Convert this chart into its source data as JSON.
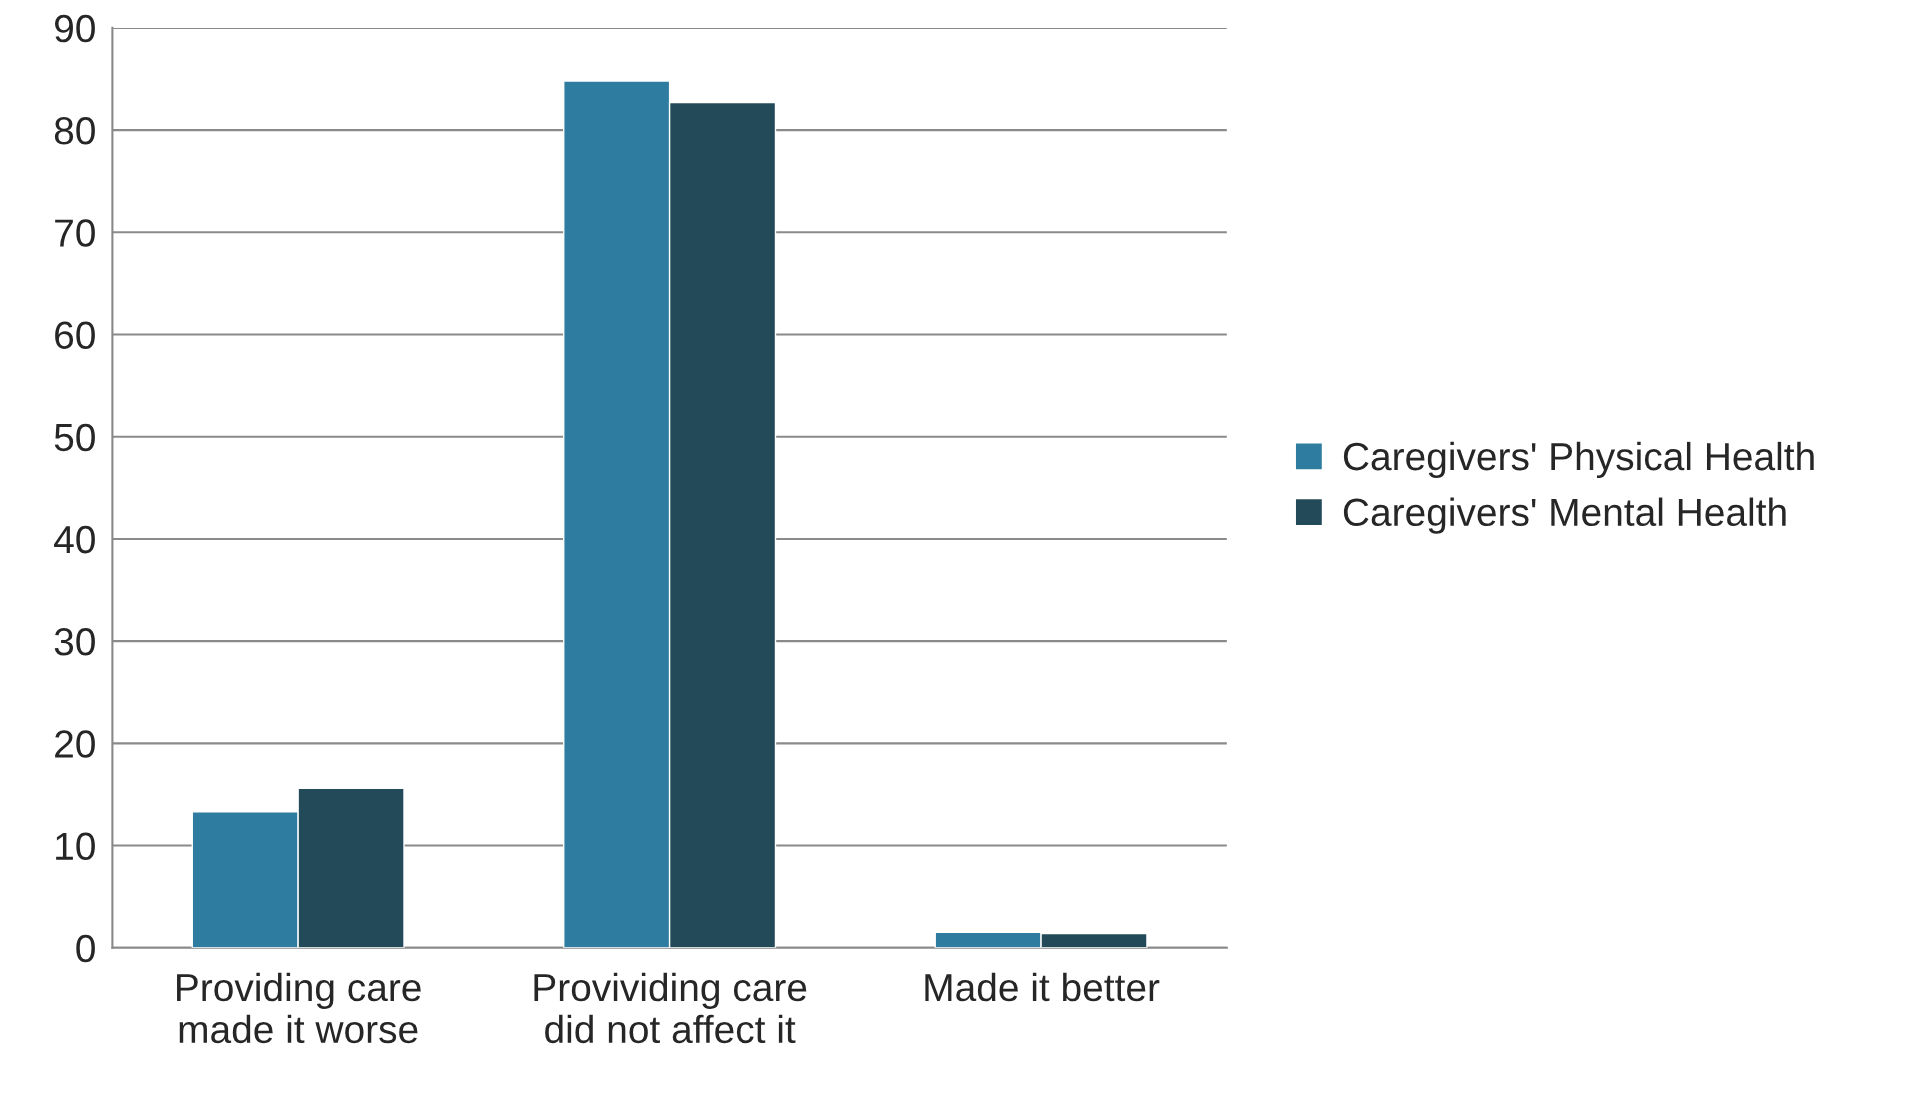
{
  "chart_data": {
    "type": "bar",
    "categories": [
      "Providing care\nmade it worse",
      "Provividing care\ndid not affect it",
      "Made it better"
    ],
    "series": [
      {
        "name": "Caregivers' Physical Health",
        "color": "#2e7ca0",
        "values": [
          13.3,
          84.8,
          1.5
        ]
      },
      {
        "name": "Caregivers' Mental Health",
        "color": "#234a59",
        "values": [
          15.6,
          82.7,
          1.4
        ]
      }
    ],
    "ylim": [
      0,
      90
    ],
    "yticks": [
      0,
      10,
      20,
      30,
      40,
      50,
      60,
      70,
      80,
      90
    ],
    "grid": "y",
    "legend": "right"
  }
}
